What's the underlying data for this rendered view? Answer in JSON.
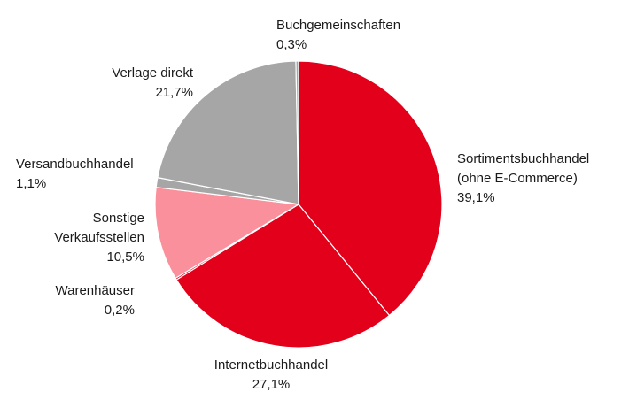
{
  "chart_data": {
    "type": "pie",
    "title": "",
    "start": "top, clockwise",
    "slices": [
      {
        "label_lines": [
          "Sortimentsbuchhandel",
          "(ohne E-Commerce)"
        ],
        "value": 39.1,
        "value_text": "39,1%",
        "color": "#e2001a"
      },
      {
        "label_lines": [
          "Internetbuchhandel"
        ],
        "value": 27.1,
        "value_text": "27,1%",
        "color": "#e2001a"
      },
      {
        "label_lines": [
          "Warenhäuser"
        ],
        "value": 0.2,
        "value_text": "0,2%",
        "color": "#e2001a"
      },
      {
        "label_lines": [
          "Sonstige",
          "Verkaufsstellen"
        ],
        "value": 10.5,
        "value_text": "10,5%",
        "color": "#f9909c"
      },
      {
        "label_lines": [
          "Versandbuchhandel"
        ],
        "value": 1.1,
        "value_text": "1,1%",
        "color": "#a6a6a6"
      },
      {
        "label_lines": [
          "Verlage direkt"
        ],
        "value": 21.7,
        "value_text": "21,7%",
        "color": "#a6a6a6"
      },
      {
        "label_lines": [
          "Buchgemeinschaften"
        ],
        "value": 0.3,
        "value_text": "0,3%",
        "color": "#a6a6a6"
      }
    ]
  }
}
